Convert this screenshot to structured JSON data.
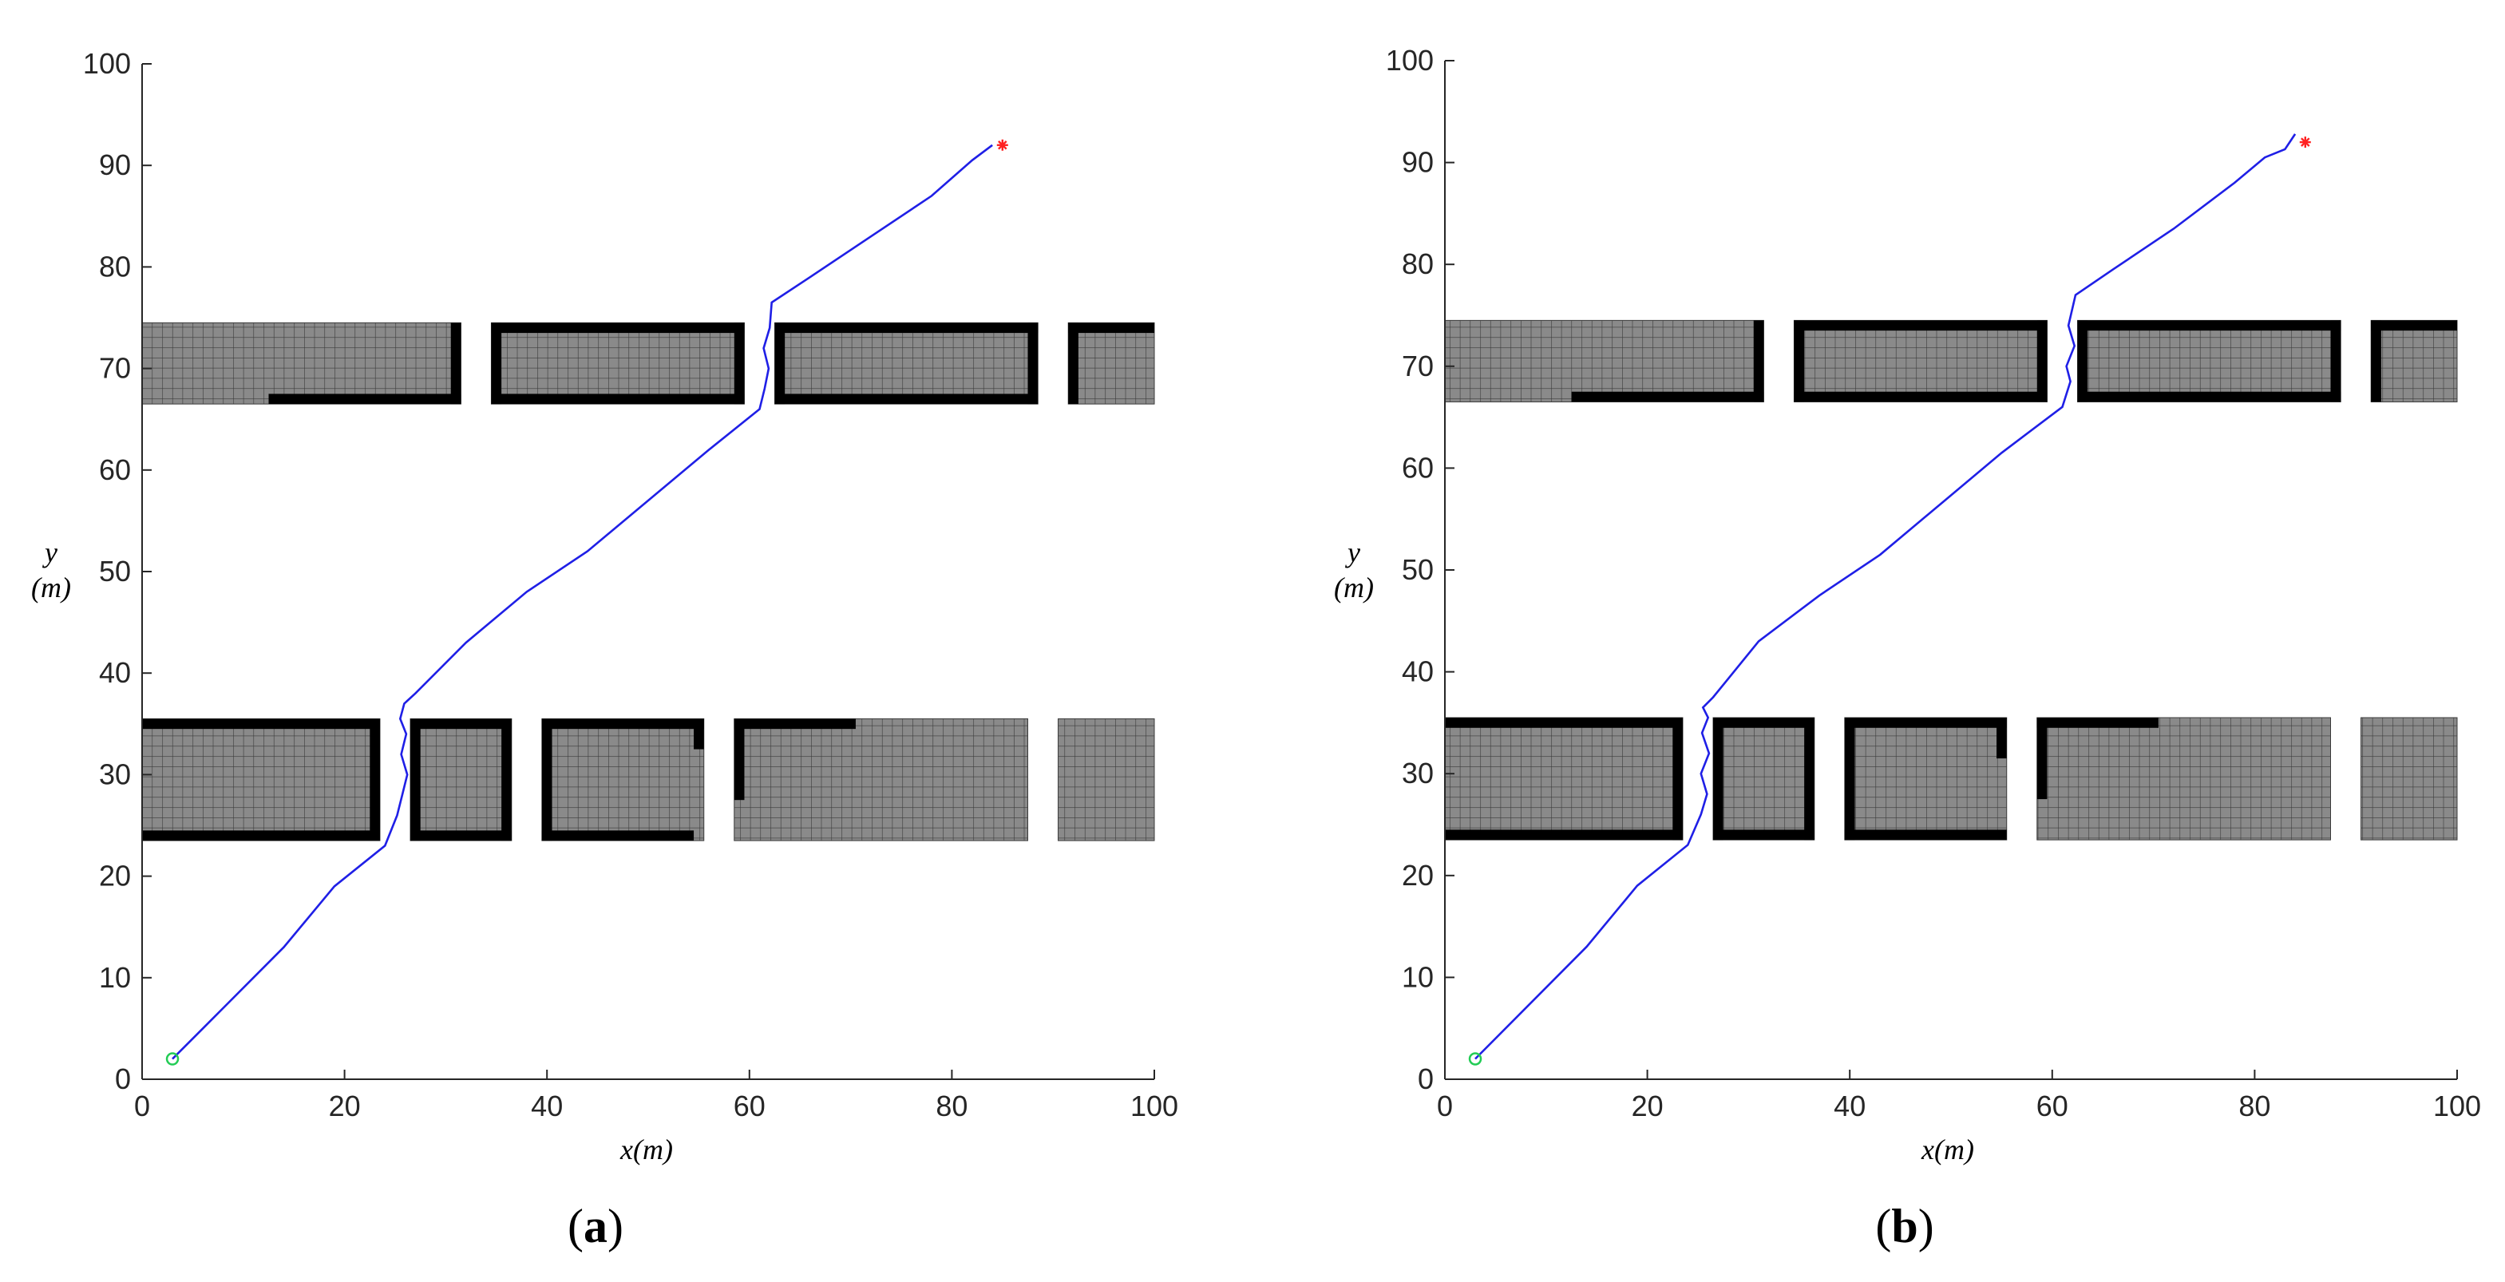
{
  "chart_data": [
    {
      "type": "line",
      "panel_label": {
        "open": "(",
        "letter": "a",
        "close": ")"
      },
      "xlabel": "x(m)",
      "ylabel": {
        "line1": "y",
        "line2": "(m)"
      },
      "xlim": [
        0,
        100
      ],
      "ylim": [
        0,
        100
      ],
      "xticks": [
        "0",
        "20",
        "40",
        "60",
        "80",
        "100"
      ],
      "yticks": [
        "0",
        "10",
        "20",
        "30",
        "40",
        "50",
        "60",
        "70",
        "80",
        "90",
        "100"
      ],
      "grid": false,
      "start": {
        "x": 3,
        "y": 2
      },
      "goal": {
        "x": 85,
        "y": 92
      },
      "path": {
        "x": [
          3,
          8,
          14,
          19,
          24,
          25.2,
          25.7,
          26.2,
          25.6,
          26.1,
          25.5,
          25.9,
          27,
          32,
          38,
          44,
          50,
          56,
          61,
          61.5,
          61.9,
          61.4,
          62,
          62.2,
          66,
          72,
          78,
          82,
          84
        ],
        "y": [
          2,
          7,
          13,
          19,
          23,
          26,
          28,
          30,
          32,
          34,
          35.5,
          37,
          38,
          43,
          48,
          52,
          57,
          62,
          66,
          68,
          70,
          72,
          74,
          76.5,
          79,
          83,
          87,
          90.5,
          92
        ]
      },
      "obstacles": [
        {
          "x0": 0,
          "x1": 31.5,
          "y0": 66.5,
          "y1": 74.5,
          "walls": [
            {
              "x0": 12.5,
              "x1": 31.5,
              "y0": 66.5,
              "y1": 67.5
            },
            {
              "x0": 30.5,
              "x1": 31.5,
              "y0": 66.5,
              "y1": 74.5
            }
          ]
        },
        {
          "x0": 34.5,
          "x1": 59.5,
          "y0": 66.5,
          "y1": 74.5,
          "walls": [
            {
              "x0": 34.5,
              "x1": 59.5,
              "y0": 73.5,
              "y1": 74.5
            },
            {
              "x0": 34.5,
              "x1": 59.5,
              "y0": 66.5,
              "y1": 67.5
            },
            {
              "x0": 34.5,
              "x1": 35.5,
              "y0": 66.5,
              "y1": 74.5
            },
            {
              "x0": 58.5,
              "x1": 59.5,
              "y0": 66.5,
              "y1": 74.5
            }
          ]
        },
        {
          "x0": 62.5,
          "x1": 88.5,
          "y0": 66.5,
          "y1": 74.5,
          "walls": [
            {
              "x0": 62.5,
              "x1": 88.5,
              "y0": 73.5,
              "y1": 74.5
            },
            {
              "x0": 62.5,
              "x1": 88.5,
              "y0": 66.5,
              "y1": 67.5
            },
            {
              "x0": 62.5,
              "x1": 63.5,
              "y0": 66.5,
              "y1": 74.5
            },
            {
              "x0": 87.5,
              "x1": 88.5,
              "y0": 66.5,
              "y1": 74.5
            }
          ]
        },
        {
          "x0": 91.5,
          "x1": 100,
          "y0": 66.5,
          "y1": 74.5,
          "walls": [
            {
              "x0": 91.5,
              "x1": 100,
              "y0": 73.5,
              "y1": 74.5
            },
            {
              "x0": 91.5,
              "x1": 92.5,
              "y0": 66.5,
              "y1": 74.5
            }
          ]
        },
        {
          "x0": 0,
          "x1": 23.5,
          "y0": 23.5,
          "y1": 35.5,
          "walls": [
            {
              "x0": 0,
              "x1": 23.5,
              "y0": 34.5,
              "y1": 35.5
            },
            {
              "x0": 0,
              "x1": 23.5,
              "y0": 23.5,
              "y1": 24.5
            },
            {
              "x0": 22.5,
              "x1": 23.5,
              "y0": 23.5,
              "y1": 35.5
            }
          ]
        },
        {
          "x0": 26.5,
          "x1": 36.5,
          "y0": 23.5,
          "y1": 35.5,
          "walls": [
            {
              "x0": 26.5,
              "x1": 36.5,
              "y0": 34.5,
              "y1": 35.5
            },
            {
              "x0": 26.5,
              "x1": 36.5,
              "y0": 23.5,
              "y1": 24.5
            },
            {
              "x0": 26.5,
              "x1": 27.5,
              "y0": 23.5,
              "y1": 35.5
            },
            {
              "x0": 35.5,
              "x1": 36.5,
              "y0": 23.5,
              "y1": 35.5
            }
          ]
        },
        {
          "x0": 39.5,
          "x1": 55.5,
          "y0": 23.5,
          "y1": 35.5,
          "walls": [
            {
              "x0": 39.5,
              "x1": 55.5,
              "y0": 34.5,
              "y1": 35.5
            },
            {
              "x0": 39.5,
              "x1": 54.5,
              "y0": 23.5,
              "y1": 24.5
            },
            {
              "x0": 39.5,
              "x1": 40.5,
              "y0": 23.5,
              "y1": 35.5
            },
            {
              "x0": 54.5,
              "x1": 55.5,
              "y0": 32.5,
              "y1": 35.5
            }
          ]
        },
        {
          "x0": 58.5,
          "x1": 87.5,
          "y0": 23.5,
          "y1": 35.5,
          "walls": [
            {
              "x0": 58.5,
              "x1": 70.5,
              "y0": 34.5,
              "y1": 35.5
            },
            {
              "x0": 58.5,
              "x1": 59.5,
              "y0": 27.5,
              "y1": 35.5
            }
          ]
        },
        {
          "x0": 90.5,
          "x1": 100,
          "y0": 23.5,
          "y1": 35.5,
          "walls": []
        }
      ]
    },
    {
      "type": "line",
      "panel_label": {
        "open": "(",
        "letter": "b",
        "close": ")"
      },
      "xlabel": "x(m)",
      "ylabel": {
        "line1": "y",
        "line2": "(m)"
      },
      "xlim": [
        0,
        100
      ],
      "ylim": [
        0,
        100
      ],
      "xticks": [
        "0",
        "20",
        "40",
        "60",
        "80",
        "100"
      ],
      "yticks": [
        "0",
        "10",
        "20",
        "30",
        "40",
        "50",
        "60",
        "70",
        "80",
        "90",
        "100"
      ],
      "grid": false,
      "start": {
        "x": 3,
        "y": 2
      },
      "goal": {
        "x": 85,
        "y": 92
      },
      "path": {
        "x": [
          3,
          8,
          14,
          19,
          24,
          25.3,
          25.9,
          25.3,
          26.1,
          25.4,
          26,
          25.5,
          26.5,
          31,
          37,
          43,
          49,
          55,
          61,
          61.8,
          61.4,
          62.2,
          61.6,
          62.3,
          66,
          72,
          78,
          81,
          83,
          84
        ],
        "y": [
          2,
          7,
          13,
          19,
          23,
          26,
          28,
          30,
          32,
          34,
          35.5,
          36.5,
          37.5,
          43,
          47.5,
          51.5,
          56.5,
          61.5,
          66,
          68.5,
          70,
          72,
          74,
          77,
          79.5,
          83.5,
          88,
          90.5,
          91.3,
          92.8
        ]
      },
      "obstacles": [
        {
          "x0": 0,
          "x1": 31.5,
          "y0": 66.5,
          "y1": 74.5,
          "walls": [
            {
              "x0": 12.5,
              "x1": 31.5,
              "y0": 66.5,
              "y1": 67.5
            },
            {
              "x0": 30.5,
              "x1": 31.5,
              "y0": 66.5,
              "y1": 74.5
            }
          ]
        },
        {
          "x0": 34.5,
          "x1": 59.5,
          "y0": 66.5,
          "y1": 74.5,
          "walls": [
            {
              "x0": 34.5,
              "x1": 59.5,
              "y0": 73.5,
              "y1": 74.5
            },
            {
              "x0": 34.5,
              "x1": 59.5,
              "y0": 66.5,
              "y1": 67.5
            },
            {
              "x0": 34.5,
              "x1": 35.5,
              "y0": 66.5,
              "y1": 74.5
            },
            {
              "x0": 58.5,
              "x1": 59.5,
              "y0": 66.5,
              "y1": 74.5
            }
          ]
        },
        {
          "x0": 62.5,
          "x1": 88.5,
          "y0": 66.5,
          "y1": 74.5,
          "walls": [
            {
              "x0": 62.5,
              "x1": 88.5,
              "y0": 73.5,
              "y1": 74.5
            },
            {
              "x0": 62.5,
              "x1": 88.5,
              "y0": 66.5,
              "y1": 67.5
            },
            {
              "x0": 62.5,
              "x1": 63.5,
              "y0": 66.5,
              "y1": 74.5
            },
            {
              "x0": 87.5,
              "x1": 88.5,
              "y0": 66.5,
              "y1": 74.5
            }
          ]
        },
        {
          "x0": 91.5,
          "x1": 100,
          "y0": 66.5,
          "y1": 74.5,
          "walls": [
            {
              "x0": 91.5,
              "x1": 100,
              "y0": 73.5,
              "y1": 74.5
            },
            {
              "x0": 91.5,
              "x1": 92.5,
              "y0": 66.5,
              "y1": 74.5
            }
          ]
        },
        {
          "x0": 0,
          "x1": 23.5,
          "y0": 23.5,
          "y1": 35.5,
          "walls": [
            {
              "x0": 0,
              "x1": 23.5,
              "y0": 34.5,
              "y1": 35.5
            },
            {
              "x0": 0,
              "x1": 23.5,
              "y0": 23.5,
              "y1": 24.5
            },
            {
              "x0": 22.5,
              "x1": 23.5,
              "y0": 23.5,
              "y1": 35.5
            }
          ]
        },
        {
          "x0": 26.5,
          "x1": 36.5,
          "y0": 23.5,
          "y1": 35.5,
          "walls": [
            {
              "x0": 26.5,
              "x1": 36.5,
              "y0": 34.5,
              "y1": 35.5
            },
            {
              "x0": 26.5,
              "x1": 36.5,
              "y0": 23.5,
              "y1": 24.5
            },
            {
              "x0": 26.5,
              "x1": 27.5,
              "y0": 23.5,
              "y1": 35.5
            },
            {
              "x0": 35.5,
              "x1": 36.5,
              "y0": 23.5,
              "y1": 35.5
            }
          ]
        },
        {
          "x0": 39.5,
          "x1": 55.5,
          "y0": 23.5,
          "y1": 35.5,
          "walls": [
            {
              "x0": 39.5,
              "x1": 55.5,
              "y0": 34.5,
              "y1": 35.5
            },
            {
              "x0": 39.5,
              "x1": 55.5,
              "y0": 23.5,
              "y1": 24.5
            },
            {
              "x0": 39.5,
              "x1": 40.5,
              "y0": 23.5,
              "y1": 35.5
            },
            {
              "x0": 54.5,
              "x1": 55.5,
              "y0": 31.5,
              "y1": 35.5
            }
          ]
        },
        {
          "x0": 58.5,
          "x1": 87.5,
          "y0": 23.5,
          "y1": 35.5,
          "walls": [
            {
              "x0": 58.5,
              "x1": 70.5,
              "y0": 34.5,
              "y1": 35.5
            },
            {
              "x0": 58.5,
              "x1": 59.5,
              "y0": 27.5,
              "y1": 35.5
            }
          ]
        },
        {
          "x0": 90.5,
          "x1": 100,
          "y0": 23.5,
          "y1": 35.5,
          "walls": []
        }
      ]
    }
  ],
  "colors": {
    "path": "#1f1fe6",
    "start": "#22cc55",
    "goal": "#ff2222",
    "cell_fill": "#8a8a8a",
    "cell_grid": "#3a3a3a",
    "wall": "#000000",
    "axis": "#262626"
  }
}
